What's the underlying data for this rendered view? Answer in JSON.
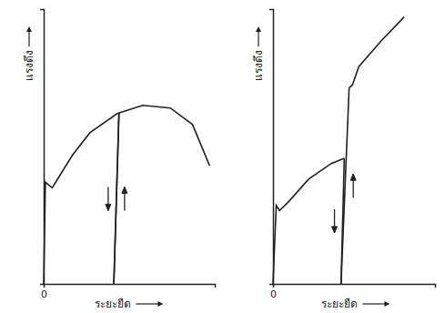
{
  "chart_data": [
    {
      "type": "line",
      "x_label": "ระยะยืด",
      "y_label": "แรงดึง",
      "xlim": [
        0,
        10
      ],
      "ylim": [
        0,
        10
      ],
      "xticks": [
        0
      ],
      "tick_labels": "x",
      "series": [
        {
          "color": "#222222",
          "line_style": "solid",
          "x": [
            0,
            0.1,
            0.3,
            0.5,
            0.7,
            1.7,
            2.7,
            4.3,
            5.8,
            7.4,
            8.7,
            9.7
          ],
          "values": [
            0,
            3.7,
            3.6,
            3.5,
            3.7,
            4.7,
            5.5,
            6.2,
            6.5,
            6.4,
            5.8,
            4.3
          ]
        },
        {
          "color": "#222222",
          "line_style": "solid",
          "marker": "arrow-down",
          "x": [
            4.4,
            4.1
          ],
          "values": [
            6.2,
            0
          ]
        },
        {
          "color": "#222222",
          "line_style": "solid",
          "marker": "arrow-up",
          "x": [
            4.1,
            4.4
          ],
          "values": [
            0,
            6.2
          ]
        }
      ]
    },
    {
      "type": "line",
      "x_label": "ระยะยืด",
      "y_label": "แรงดึง",
      "xlim": [
        0,
        10
      ],
      "ylim": [
        0,
        10.5
      ],
      "xticks": [
        0
      ],
      "tick_labels": "x",
      "series": [
        {
          "color": "#222222",
          "line_style": "solid",
          "x": [
            0,
            0.2,
            0.4,
            0.9,
            2.2,
            3.6,
            4.4
          ],
          "values": [
            0,
            3,
            2.8,
            3.1,
            4,
            4.6,
            4.8
          ]
        },
        {
          "color": "#222222",
          "line_style": "solid",
          "marker": "arrow-down",
          "x": [
            4.4,
            4.2
          ],
          "values": [
            4.8,
            0
          ]
        },
        {
          "color": "#222222",
          "line_style": "solid",
          "marker": "arrow-up",
          "x": [
            4.2,
            4.7
          ],
          "values": [
            0,
            7.5
          ]
        },
        {
          "color": "#222222",
          "line_style": "solid",
          "x": [
            4.7,
            4.9,
            5.3,
            6.7,
            8.1
          ],
          "values": [
            7.5,
            7.6,
            8.3,
            9.3,
            10.2
          ]
        }
      ]
    }
  ]
}
